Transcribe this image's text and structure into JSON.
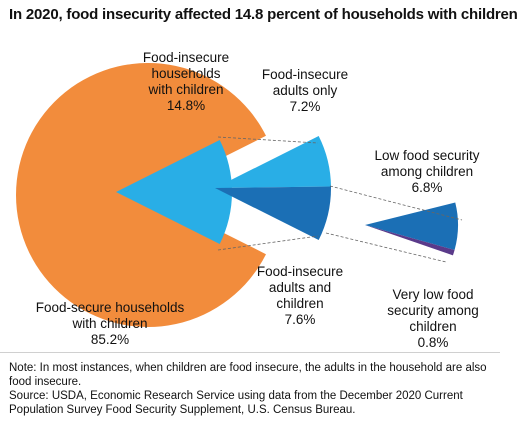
{
  "chart_data": {
    "type": "pie",
    "title": "In 2020, food insecurity affected 14.8 percent of households with children",
    "slices": [
      {
        "name": "Food-secure households with children",
        "value": 85.2,
        "value_label": "85.2%",
        "color": "#f28c3c"
      },
      {
        "name": "Food-insecure households with children",
        "value": 14.8,
        "value_label": "14.8%",
        "color": "#29aee6"
      }
    ],
    "breakdowns": [
      {
        "parent": "Food-insecure households with children",
        "parts": [
          {
            "name": "Food-insecure adults only",
            "value": 7.2,
            "value_label": "7.2%",
            "color": "#29aee6"
          },
          {
            "name": "Food-insecure adults and children",
            "value": 7.6,
            "value_label": "7.6%",
            "color": "#1b6fb5"
          }
        ]
      },
      {
        "parent": "Food-insecure adults and children",
        "parts": [
          {
            "name": "Low food security among children",
            "value": 6.8,
            "value_label": "6.8%",
            "color": "#1b6fb5"
          },
          {
            "name": "Very low food security among children",
            "value": 0.8,
            "value_label": "0.8%",
            "color": "#5a3a8a"
          }
        ]
      }
    ]
  },
  "labels": {
    "food_secure": "Food-secure households\nwith children\n85.2%",
    "insecure_households": "Food-insecure\nhouseholds\nwith children\n14.8%",
    "adults_only": "Food-insecure\nadults only\n7.2%",
    "adults_and_children": "Food-insecure\nadults and\nchildren\n7.6%",
    "low_security": "Low food security\namong children\n6.8%",
    "very_low_security": "Very low food\nsecurity among\nchildren\n0.8%"
  },
  "footer": {
    "note": "Note: In most instances, when children are food insecure, the adults in the household are also food insecure.",
    "source": "Source: USDA, Economic Research Service using data from the December 2020 Current Population Survey Food Security Supplement, U.S. Census Bureau."
  },
  "colors": {
    "secure": "#f28c3c",
    "insecure": "#29aee6",
    "adults_children": "#1b6fb5",
    "very_low": "#5a3a8a",
    "dash": "#666666"
  }
}
